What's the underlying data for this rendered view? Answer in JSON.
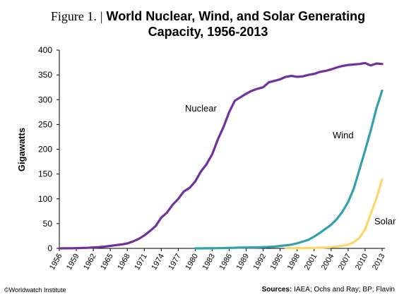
{
  "figure": {
    "label": "Figure 1.",
    "separator": "|",
    "title_line1": "World Nuclear, Wind, and Solar Generating",
    "title_line2": "Capacity, 1956-2013"
  },
  "footer": {
    "credit": "©Worldwatch Institute",
    "sources_label": "Sources:",
    "sources_text": "IAEA; Ochs and Ray; BP; Flavin"
  },
  "chart_data": {
    "type": "line",
    "title": "World Nuclear, Wind, and Solar Generating Capacity, 1956-2013",
    "xlabel": "",
    "ylabel": "Gigawatts",
    "xlim": [
      1956,
      2013
    ],
    "ylim": [
      0,
      400
    ],
    "yticks": [
      0,
      50,
      100,
      150,
      200,
      250,
      300,
      350,
      400
    ],
    "xticks": [
      1956,
      1959,
      1962,
      1965,
      1968,
      1971,
      1974,
      1977,
      1980,
      1983,
      1986,
      1989,
      1992,
      1995,
      1998,
      2001,
      2004,
      2007,
      2010,
      2013
    ],
    "grid": false,
    "legend": "inline labels",
    "series": [
      {
        "name": "Nuclear",
        "color": "#7030a0",
        "x": [
          1956,
          1957,
          1958,
          1959,
          1960,
          1961,
          1962,
          1963,
          1964,
          1965,
          1966,
          1967,
          1968,
          1969,
          1970,
          1971,
          1972,
          1973,
          1974,
          1975,
          1976,
          1977,
          1978,
          1979,
          1980,
          1981,
          1982,
          1983,
          1984,
          1985,
          1986,
          1987,
          1988,
          1989,
          1990,
          1991,
          1992,
          1993,
          1994,
          1995,
          1996,
          1997,
          1998,
          1999,
          2000,
          2001,
          2002,
          2003,
          2004,
          2005,
          2006,
          2007,
          2008,
          2009,
          2010,
          2011,
          2012,
          2013
        ],
        "values": [
          0,
          0.1,
          0.2,
          0.4,
          0.8,
          1.2,
          1.8,
          2.5,
          3.5,
          5,
          6.5,
          8,
          10,
          14,
          19,
          26,
          35,
          45,
          62,
          72,
          88,
          100,
          115,
          122,
          135,
          155,
          170,
          190,
          220,
          245,
          275,
          298,
          305,
          312,
          318,
          322,
          325,
          335,
          338,
          341,
          346,
          348,
          346,
          347,
          350,
          352,
          356,
          358,
          361,
          365,
          368,
          370,
          371,
          372,
          374,
          369,
          373,
          372
        ]
      },
      {
        "name": "Wind",
        "color": "#31a2ac",
        "x": [
          1980,
          1981,
          1982,
          1983,
          1984,
          1985,
          1986,
          1987,
          1988,
          1989,
          1990,
          1991,
          1992,
          1993,
          1994,
          1995,
          1996,
          1997,
          1998,
          1999,
          2000,
          2001,
          2002,
          2003,
          2004,
          2005,
          2006,
          2007,
          2008,
          2009,
          2010,
          2011,
          2012,
          2013
        ],
        "values": [
          0,
          0,
          0.1,
          0.2,
          0.4,
          0.7,
          1,
          1.3,
          1.6,
          1.8,
          2,
          2.2,
          2.5,
          3,
          3.5,
          4.8,
          6.1,
          7.6,
          10.2,
          13.6,
          17.4,
          23.9,
          31.1,
          39.4,
          47.6,
          59.1,
          74,
          93.6,
          120.6,
          158.9,
          197.6,
          238.1,
          282.5,
          318.1
        ]
      },
      {
        "name": "Solar",
        "color": "#fdd66b",
        "x": [
          1996,
          1997,
          1998,
          1999,
          2000,
          2001,
          2002,
          2003,
          2004,
          2005,
          2006,
          2007,
          2008,
          2009,
          2010,
          2011,
          2012,
          2013
        ],
        "values": [
          0.3,
          0.4,
          0.5,
          0.6,
          0.8,
          1,
          1.4,
          1.9,
          2.6,
          3.8,
          5.3,
          7.6,
          12.5,
          21,
          38,
          70,
          101,
          139
        ]
      }
    ],
    "annotations": [
      {
        "text": "Nuclear",
        "series": "Nuclear"
      },
      {
        "text": "Wind",
        "series": "Wind"
      },
      {
        "text": "Solar",
        "series": "Solar"
      }
    ]
  }
}
